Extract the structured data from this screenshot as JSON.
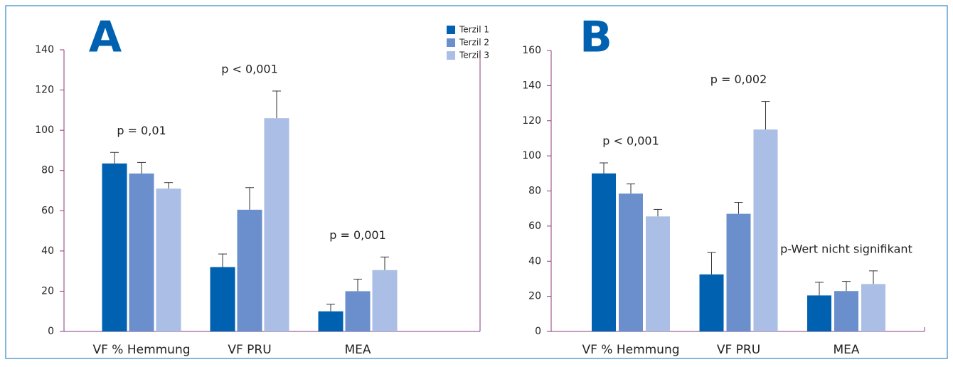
{
  "chart_data": [
    {
      "type": "bar",
      "title": "A",
      "categories": [
        "VF % Hemmung",
        "VF PRU",
        "MEA"
      ],
      "series": [
        {
          "name": "Terzil 1",
          "color": "#0061b1",
          "values": [
            83.5,
            32,
            10
          ],
          "errors": [
            5.5,
            6.5,
            3.5
          ]
        },
        {
          "name": "Terzil 2",
          "color": "#6b8fcc",
          "values": [
            78.5,
            60.5,
            20
          ],
          "errors": [
            5.5,
            11,
            6
          ]
        },
        {
          "name": "Terzil 3",
          "color": "#abbee5",
          "values": [
            71,
            106,
            30.5
          ],
          "errors": [
            3,
            13.5,
            6.5
          ]
        }
      ],
      "ylim": [
        0,
        140
      ],
      "yticks": [
        0,
        20,
        40,
        60,
        80,
        100,
        120,
        140
      ],
      "annotations": [
        "p = 0,01",
        "p < 0,001",
        "p = 0,001"
      ]
    },
    {
      "type": "bar",
      "title": "B",
      "categories": [
        "VF % Hemmung",
        "VF PRU",
        "MEA"
      ],
      "series": [
        {
          "color": "#0061b1",
          "values": [
            90,
            32.5,
            20.5
          ],
          "errors": [
            6,
            12.5,
            7.5
          ]
        },
        {
          "color": "#6b8fcc",
          "values": [
            78.5,
            67,
            23
          ],
          "errors": [
            5.5,
            6.5,
            5.5
          ]
        },
        {
          "color": "#abbee5",
          "values": [
            65.5,
            115,
            27
          ],
          "errors": [
            4,
            16,
            7.5
          ]
        }
      ],
      "ylim": [
        0,
        160
      ],
      "yticks": [
        0,
        20,
        40,
        60,
        80,
        100,
        120,
        140,
        160
      ],
      "annotations": [
        "p < 0,001",
        "p = 0,002",
        "p-Wert nicht signifikant"
      ]
    }
  ]
}
